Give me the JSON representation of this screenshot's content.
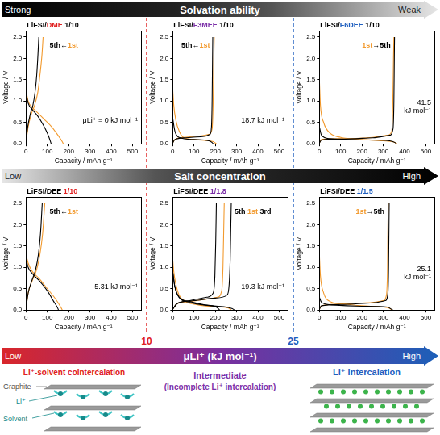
{
  "solvation_bar": {
    "left": "Strong",
    "title": "Solvation ability",
    "right": "Weak"
  },
  "salt_bar": {
    "left": "Low",
    "title": "Salt concentration",
    "right": "High"
  },
  "mu_bar": {
    "left": "Low",
    "title": "μLi⁺ (kJ mol⁻¹)",
    "right": "High"
  },
  "thresholds": [
    {
      "label": "10",
      "color": "#e02020"
    },
    {
      "label": "25",
      "color": "#1f5fbf"
    }
  ],
  "regimes": [
    {
      "label": [
        "Li⁺-solvent cointercalation"
      ],
      "color": "#e02020"
    },
    {
      "label": [
        "Intermediate",
        "(Incomplete Li⁺ intercalation)"
      ],
      "color": "#7b2fa8"
    },
    {
      "label": [
        "Li⁺ intercalation"
      ],
      "color": "#1f5fbf"
    }
  ],
  "diagram_labels": {
    "graphite": "Graphite",
    "li": "Li⁺",
    "solvent": "Solvent"
  },
  "chart_data": [
    {
      "type": "line",
      "title": [
        {
          "text": "LiFSI/",
          "color": "#000000"
        },
        {
          "text": "DME",
          "color": "#e02020"
        },
        {
          "text": " 1/10",
          "color": "#000000"
        }
      ],
      "cycle_label": [
        {
          "text": "5th←",
          "color": "#000000"
        },
        {
          "text": "1st",
          "color": "#f29a2e"
        }
      ],
      "annotation": [
        "μLi⁺ = 0 kJ mol⁻¹"
      ],
      "x_label": "Capacity / mAh g⁻¹",
      "y_label": "Voltage / V",
      "xlim": [
        0,
        540
      ],
      "ylim": [
        0,
        2.65
      ],
      "xticks": [
        0,
        100,
        200,
        300,
        400,
        500
      ],
      "yticks": [
        {
          "value": 0,
          "label": "0.0"
        },
        0.5,
        {
          "value": 1,
          "label": "1.0"
        },
        1.5,
        {
          "value": 2,
          "label": "2.0"
        },
        2.5
      ],
      "grid": false,
      "series": [
        {
          "name": "5th",
          "color": "#000000",
          "x": [
            0,
            10,
            30,
            55,
            80,
            100,
            115,
            118,
            null,
            0,
            8,
            20,
            32,
            42,
            50,
            56,
            60
          ],
          "values": [
            1.2,
            0.95,
            0.8,
            0.65,
            0.45,
            0.25,
            0.05,
            0,
            null,
            0.05,
            0.4,
            0.7,
            0.9,
            1.2,
            1.6,
            2.1,
            2.5
          ]
        },
        {
          "name": "1st",
          "color": "#f29a2e",
          "x": [
            0,
            10,
            30,
            60,
            90,
            120,
            150,
            170,
            175,
            null,
            0,
            10,
            25,
            40,
            55,
            65,
            75,
            80
          ],
          "values": [
            1.25,
            1.0,
            0.85,
            0.7,
            0.55,
            0.4,
            0.2,
            0.05,
            0,
            null,
            0.05,
            0.4,
            0.7,
            0.9,
            1.2,
            1.6,
            2.1,
            2.5
          ]
        }
      ]
    },
    {
      "type": "line",
      "title": [
        {
          "text": "LiFSI/",
          "color": "#000000"
        },
        {
          "text": "F3MEE",
          "color": "#7b2fa8"
        },
        {
          "text": " 1/10",
          "color": "#000000"
        }
      ],
      "cycle_label": [
        {
          "text": "5th←",
          "color": "#000000"
        },
        {
          "text": "1st",
          "color": "#f29a2e"
        }
      ],
      "annotation": [
        "18.7 kJ mol⁻¹"
      ],
      "x_label": "Capacity / mAh g⁻¹",
      "y_label": "Voltage / V",
      "xlim": [
        0,
        540
      ],
      "ylim": [
        0,
        2.65
      ],
      "xticks": [
        0,
        100,
        200,
        300,
        400,
        500
      ],
      "yticks": [
        {
          "value": 0,
          "label": "0.0"
        },
        0.5,
        {
          "value": 1,
          "label": "1.0"
        },
        1.5,
        {
          "value": 2,
          "label": "2.0"
        },
        2.5
      ],
      "grid": false,
      "series": [
        {
          "name": "5th",
          "color": "#000000",
          "x": [
            0,
            10,
            30,
            100,
            170,
            185,
            190,
            null,
            0,
            10,
            60,
            140,
            175,
            182,
            185,
            187,
            188
          ],
          "values": [
            0.6,
            0.3,
            0.15,
            0.1,
            0.07,
            0.03,
            0,
            null,
            0.02,
            0.1,
            0.14,
            0.17,
            0.22,
            0.4,
            1.0,
            2.0,
            2.5
          ]
        },
        {
          "name": "1st",
          "color": "#f29a2e",
          "x": [
            0,
            5,
            15,
            30,
            50,
            100,
            150,
            190,
            205,
            null,
            0,
            10,
            50,
            120,
            170,
            185,
            190,
            193,
            195
          ],
          "values": [
            1.3,
            0.9,
            0.55,
            0.3,
            0.15,
            0.1,
            0.08,
            0.05,
            0,
            null,
            0.02,
            0.1,
            0.15,
            0.18,
            0.22,
            0.35,
            1.0,
            2.0,
            2.5
          ]
        }
      ]
    },
    {
      "type": "line",
      "title": [
        {
          "text": "LiFSI/",
          "color": "#000000"
        },
        {
          "text": "F6DEE",
          "color": "#1f5fbf"
        },
        {
          "text": " 1/10",
          "color": "#000000"
        }
      ],
      "cycle_label": [
        {
          "text": "1st",
          "color": "#f29a2e"
        },
        {
          "text": "→5th",
          "color": "#000000"
        }
      ],
      "annotation": [
        "41.5",
        "kJ mol⁻¹"
      ],
      "x_label": "Capacity / mAh g⁻¹",
      "y_label": "Voltage / V",
      "xlim": [
        0,
        540
      ],
      "ylim": [
        0,
        2.65
      ],
      "xticks": [
        0,
        100,
        200,
        300,
        400,
        500
      ],
      "yticks": [
        {
          "value": 0,
          "label": "0.0"
        },
        0.5,
        {
          "value": 1,
          "label": "1.0"
        },
        1.5,
        {
          "value": 2,
          "label": "2.0"
        },
        2.5
      ],
      "grid": false,
      "series": [
        {
          "name": "5th",
          "color": "#000000",
          "x": [
            0,
            10,
            50,
            200,
            330,
            355,
            362,
            null,
            0,
            10,
            100,
            250,
            330,
            346,
            350,
            352,
            353
          ],
          "values": [
            0.4,
            0.2,
            0.12,
            0.09,
            0.07,
            0.03,
            0,
            null,
            0.02,
            0.09,
            0.11,
            0.14,
            0.2,
            0.35,
            1.0,
            2.0,
            2.5
          ]
        },
        {
          "name": "1st",
          "color": "#f29a2e",
          "x": [
            0,
            5,
            20,
            50,
            100,
            200,
            300,
            350,
            365,
            null,
            0,
            10,
            100,
            250,
            320,
            340,
            345,
            348,
            350
          ],
          "values": [
            1.5,
            0.9,
            0.5,
            0.25,
            0.15,
            0.1,
            0.07,
            0.04,
            0,
            null,
            0.02,
            0.1,
            0.12,
            0.15,
            0.2,
            0.3,
            1.0,
            2.0,
            2.5
          ]
        }
      ]
    },
    {
      "type": "line",
      "title": [
        {
          "text": "LiFSI/DEE ",
          "color": "#000000"
        },
        {
          "text": "1/10",
          "color": "#e02020"
        }
      ],
      "cycle_label": [
        {
          "text": "5th←",
          "color": "#000000"
        },
        {
          "text": "1st",
          "color": "#f29a2e"
        }
      ],
      "annotation": [
        "5.31 kJ mol⁻¹"
      ],
      "x_label": "Capacity / mAh g⁻¹",
      "y_label": "Voltage / V",
      "xlim": [
        0,
        540
      ],
      "ylim": [
        0,
        2.65
      ],
      "xticks": [
        0,
        100,
        200,
        300,
        400,
        500
      ],
      "yticks": [
        {
          "value": 0,
          "label": "0.0"
        },
        0.5,
        {
          "value": 1,
          "label": "1.0"
        },
        1.5,
        {
          "value": 2,
          "label": "2.0"
        },
        2.5
      ],
      "grid": false,
      "series": [
        {
          "name": "5th",
          "color": "#000000",
          "x": [
            0,
            10,
            30,
            60,
            100,
            130,
            150,
            152,
            null,
            0,
            10,
            28,
            45,
            58,
            68,
            76
          ],
          "values": [
            1.2,
            1.0,
            0.85,
            0.7,
            0.45,
            0.2,
            0.03,
            0,
            null,
            0.05,
            0.4,
            0.7,
            0.95,
            1.3,
            1.8,
            2.5
          ]
        },
        {
          "name": "1st",
          "color": "#f29a2e",
          "x": [
            0,
            10,
            30,
            60,
            100,
            140,
            165,
            170,
            null,
            0,
            10,
            30,
            50,
            65,
            78,
            88
          ],
          "values": [
            1.3,
            1.1,
            0.9,
            0.75,
            0.5,
            0.25,
            0.05,
            0,
            null,
            0.05,
            0.4,
            0.7,
            0.95,
            1.3,
            1.8,
            2.5
          ]
        }
      ]
    },
    {
      "type": "line",
      "title": [
        {
          "text": "LiFSI/DEE ",
          "color": "#000000"
        },
        {
          "text": "1/1.8",
          "color": "#7b2fa8"
        }
      ],
      "cycle_label": [
        {
          "text": "5th ",
          "color": "#000000"
        },
        {
          "text": "1st ",
          "color": "#f29a2e"
        },
        {
          "text": "3rd",
          "color": "#000000"
        }
      ],
      "annotation": [
        "19.3 kJ mol⁻¹"
      ],
      "x_label": "Capacity / mAh g⁻¹",
      "y_label": "Voltage / V",
      "xlim": [
        0,
        540
      ],
      "ylim": [
        0,
        2.65
      ],
      "xticks": [
        0,
        100,
        200,
        300,
        400,
        500
      ],
      "yticks": [
        {
          "value": 0,
          "label": "0.0"
        },
        0.5,
        {
          "value": 1,
          "label": "1.0"
        },
        1.5,
        {
          "value": 2,
          "label": "2.0"
        },
        2.5
      ],
      "grid": false,
      "series": [
        {
          "name": "5th",
          "color": "#000000",
          "x": [
            0,
            10,
            30,
            80,
            150,
            200,
            215,
            220,
            null,
            0,
            20,
            80,
            160,
            190,
            198,
            202,
            205
          ],
          "values": [
            0.9,
            0.55,
            0.3,
            0.2,
            0.12,
            0.08,
            0.03,
            0,
            null,
            0.02,
            0.15,
            0.22,
            0.3,
            0.4,
            0.8,
            1.6,
            2.5
          ]
        },
        {
          "name": "3rd",
          "color": "#000000",
          "x": [
            0,
            10,
            30,
            80,
            180,
            260,
            280,
            290,
            null,
            0,
            20,
            100,
            200,
            255,
            265,
            270,
            273,
            275
          ],
          "values": [
            0.9,
            0.55,
            0.3,
            0.18,
            0.1,
            0.06,
            0.03,
            0,
            null,
            0.02,
            0.15,
            0.22,
            0.28,
            0.35,
            0.6,
            1.2,
            2.0,
            2.5
          ]
        },
        {
          "name": "1st",
          "color": "#f29a2e",
          "x": [
            0,
            5,
            15,
            30,
            60,
            120,
            200,
            260,
            275,
            null,
            0,
            20,
            80,
            150,
            210,
            230,
            236,
            240,
            242
          ],
          "values": [
            1.2,
            0.9,
            0.6,
            0.35,
            0.2,
            0.12,
            0.08,
            0.05,
            0,
            null,
            0.02,
            0.15,
            0.2,
            0.25,
            0.3,
            0.45,
            1.0,
            2.0,
            2.5
          ]
        }
      ]
    },
    {
      "type": "line",
      "title": [
        {
          "text": "LiFSI/DEE ",
          "color": "#000000"
        },
        {
          "text": "1/1.5",
          "color": "#1f5fbf"
        }
      ],
      "cycle_label": [
        {
          "text": "1st",
          "color": "#f29a2e"
        },
        {
          "text": "→5th",
          "color": "#000000"
        }
      ],
      "annotation": [
        "25.1",
        "kJ mol⁻¹"
      ],
      "x_label": "Capacity / mAh g⁻¹",
      "y_label": "Voltage / V",
      "xlim": [
        0,
        540
      ],
      "ylim": [
        0,
        2.65
      ],
      "xticks": [
        0,
        100,
        200,
        300,
        400,
        500
      ],
      "yticks": [
        {
          "value": 0,
          "label": "0.0"
        },
        0.5,
        {
          "value": 1,
          "label": "1.0"
        },
        1.5,
        {
          "value": 2,
          "label": "2.0"
        },
        2.5
      ],
      "grid": false,
      "series": [
        {
          "name": "5th",
          "color": "#000000",
          "x": [
            0,
            10,
            60,
            200,
            320,
            335,
            345,
            null,
            0,
            10,
            100,
            250,
            310,
            322,
            325,
            327,
            328
          ],
          "values": [
            0.3,
            0.18,
            0.12,
            0.09,
            0.07,
            0.03,
            0,
            null,
            0.02,
            0.1,
            0.13,
            0.17,
            0.22,
            0.4,
            1.0,
            2.0,
            2.5
          ]
        },
        {
          "name": "1st",
          "color": "#f29a2e",
          "x": [
            0,
            5,
            20,
            50,
            100,
            200,
            300,
            330,
            340,
            null,
            0,
            10,
            100,
            250,
            300,
            315,
            320,
            322,
            324
          ],
          "values": [
            1.3,
            0.8,
            0.4,
            0.2,
            0.15,
            0.1,
            0.07,
            0.04,
            0,
            null,
            0.02,
            0.1,
            0.14,
            0.18,
            0.22,
            0.35,
            1.0,
            2.0,
            2.5
          ]
        }
      ]
    }
  ]
}
